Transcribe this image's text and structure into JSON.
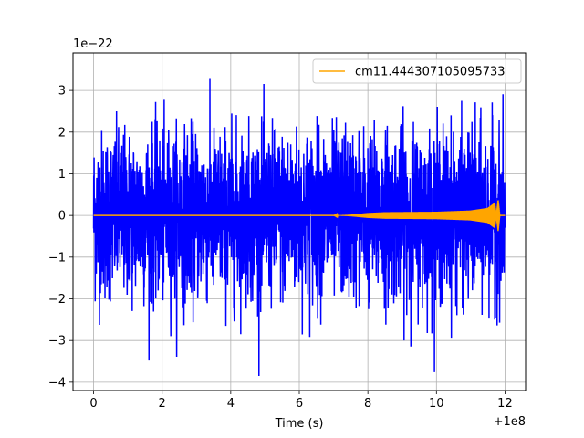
{
  "chart_data": {
    "type": "line",
    "title": "",
    "xlabel": "Time (s)",
    "ylabel": "",
    "x_offset_label": "+1e8",
    "y_scale_label": "1e−22",
    "xlim": [
      -0.6,
      12.6
    ],
    "ylim": [
      -4.2,
      3.9
    ],
    "x_ticks": [
      0,
      2,
      4,
      6,
      8,
      10,
      12
    ],
    "x_tick_labels": [
      "0",
      "2",
      "4",
      "6",
      "8",
      "10",
      "12"
    ],
    "y_ticks": [
      -4,
      -3,
      -2,
      -1,
      0,
      1,
      2,
      3
    ],
    "y_tick_labels": [
      "−4",
      "−3",
      "−2",
      "−1",
      "0",
      "1",
      "2",
      "3"
    ],
    "grid": true,
    "legend_position": "top-right",
    "series": [
      {
        "color": "#0000ff",
        "description": "noisy strain data",
        "x_range": [
          0,
          12
        ],
        "envelope_max": 3.6,
        "envelope_min": -3.85
      },
      {
        "name": "cm11.444307105095733",
        "color": "#ffa500",
        "x_range": [
          0,
          12
        ],
        "amplitude_profile": [
          [
            0,
            0.0
          ],
          [
            7.0,
            0.0
          ],
          [
            7.5,
            0.02
          ],
          [
            8.0,
            0.06
          ],
          [
            8.5,
            0.08
          ],
          [
            10.0,
            0.09
          ],
          [
            11.0,
            0.12
          ],
          [
            11.5,
            0.18
          ],
          [
            11.7,
            0.3
          ],
          [
            11.8,
            -0.38
          ],
          [
            11.85,
            0.0
          ],
          [
            12,
            0.0
          ]
        ]
      }
    ]
  }
}
